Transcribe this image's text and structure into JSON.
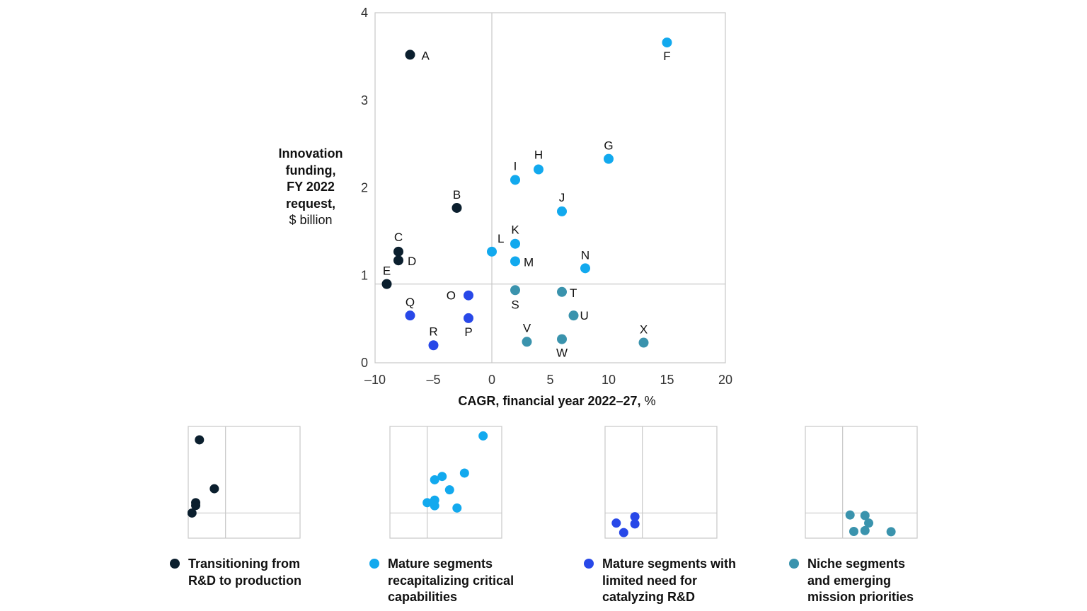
{
  "chart_data": {
    "type": "scatter",
    "xlabel_bold": "CAGR, financial year 2022–27,",
    "xlabel_rest": " %",
    "ylabel_bold_lines": [
      "Innovation",
      "funding,",
      "FY 2022",
      "request,"
    ],
    "ylabel_rest": "$ billion",
    "xlim": [
      -10,
      20
    ],
    "ylim": [
      0,
      4
    ],
    "x_ticks": [
      "–10",
      "–5",
      "0",
      "5",
      "10",
      "15",
      "20"
    ],
    "y_ticks": [
      "0",
      "1",
      "2",
      "3",
      "4"
    ],
    "reference_lines": {
      "x": 0,
      "y": 0.9
    },
    "series": [
      {
        "name": "Transitioning from\nR&D to production",
        "color": "#0b1f2e",
        "points": [
          {
            "label": "A",
            "x": -7,
            "y": 3.52
          },
          {
            "label": "B",
            "x": -3,
            "y": 1.77
          },
          {
            "label": "C",
            "x": -8,
            "y": 1.27
          },
          {
            "label": "D",
            "x": -8,
            "y": 1.17
          },
          {
            "label": "E",
            "x": -9,
            "y": 0.9
          }
        ]
      },
      {
        "name": "Mature segments\nrecapitalizing critical\ncapabilities",
        "color": "#12a9ee",
        "points": [
          {
            "label": "F",
            "x": 15,
            "y": 3.66
          },
          {
            "label": "G",
            "x": 10,
            "y": 2.33
          },
          {
            "label": "H",
            "x": 4,
            "y": 2.21
          },
          {
            "label": "I",
            "x": 2,
            "y": 2.09
          },
          {
            "label": "J",
            "x": 6,
            "y": 1.73
          },
          {
            "label": "K",
            "x": 2,
            "y": 1.36
          },
          {
            "label": "L",
            "x": 0,
            "y": 1.27
          },
          {
            "label": "M",
            "x": 2,
            "y": 1.16
          },
          {
            "label": "N",
            "x": 8,
            "y": 1.08
          }
        ]
      },
      {
        "name": "Mature segments with\nlimited need for\ncatalyzing R&D",
        "color": "#2848e8",
        "points": [
          {
            "label": "O",
            "x": -2,
            "y": 0.77
          },
          {
            "label": "P",
            "x": -2,
            "y": 0.51
          },
          {
            "label": "Q",
            "x": -7,
            "y": 0.54
          },
          {
            "label": "R",
            "x": -5,
            "y": 0.2
          }
        ]
      },
      {
        "name": "Niche segments\nand emerging\nmission priorities",
        "color": "#3a93ad",
        "points": [
          {
            "label": "S",
            "x": 2,
            "y": 0.83
          },
          {
            "label": "T",
            "x": 6,
            "y": 0.81
          },
          {
            "label": "U",
            "x": 7,
            "y": 0.54
          },
          {
            "label": "V",
            "x": 3,
            "y": 0.24
          },
          {
            "label": "W",
            "x": 6,
            "y": 0.27
          },
          {
            "label": "X",
            "x": 13,
            "y": 0.23
          }
        ]
      }
    ],
    "grid": false
  }
}
